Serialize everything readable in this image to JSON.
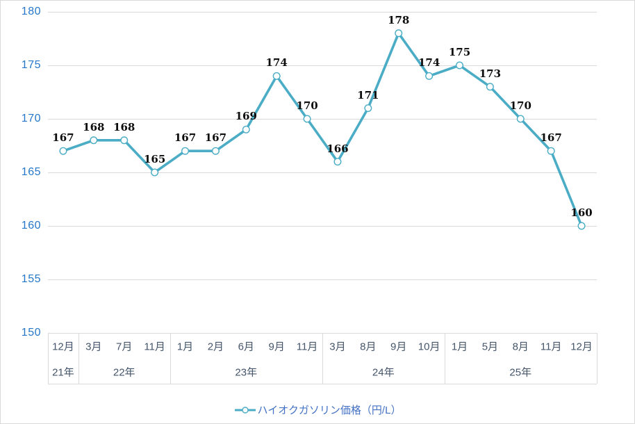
{
  "chart_data": {
    "type": "line",
    "categories": [
      "12月",
      "3月",
      "7月",
      "11月",
      "1月",
      "2月",
      "6月",
      "9月",
      "11月",
      "3月",
      "8月",
      "9月",
      "10月",
      "1月",
      "5月",
      "8月",
      "11月",
      "12月"
    ],
    "category_groups": [
      {
        "label": "21年",
        "count": 1
      },
      {
        "label": "22年",
        "count": 3
      },
      {
        "label": "23年",
        "count": 5
      },
      {
        "label": "24年",
        "count": 4
      },
      {
        "label": "25年",
        "count": 5
      }
    ],
    "series": [
      {
        "name": "ハイオクガソリン価格（円/L）",
        "values": [
          167,
          168,
          168,
          165,
          167,
          167,
          169,
          174,
          170,
          166,
          171,
          178,
          174,
          175,
          173,
          170,
          167,
          160
        ]
      }
    ],
    "data_labels_shown": true,
    "title": "",
    "xlabel": "",
    "ylabel": "",
    "ylim": [
      150,
      180
    ],
    "yticks": [
      180,
      175,
      170,
      165,
      160,
      155,
      150
    ],
    "grid": true,
    "legend_position": "bottom",
    "marker": "circle-open"
  },
  "legend": {
    "marker_icon": "line-with-open-circle-icon",
    "label": "ハイオクガソリン価格（円/L）"
  },
  "colors": {
    "line": "#4bacc6",
    "marker_fill": "#ffffff",
    "gridline": "#d9d9d9",
    "frame": "#d9d9d9",
    "y_tick_labels": "#2577c9",
    "x_tick_labels": "#44546a",
    "legend_text": "#4472c4",
    "data_labels": "#0d0d0d",
    "background": "#ffffff"
  }
}
